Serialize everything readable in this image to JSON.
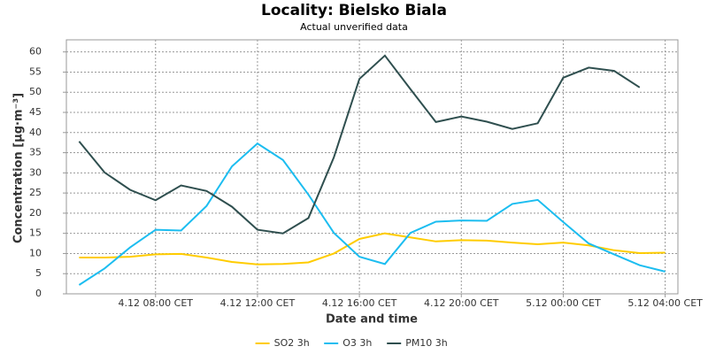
{
  "chart_data": {
    "type": "line",
    "title": "Locality: Bielsko Biala",
    "subtitle": "Actual unverified data",
    "x_label": "Date and time",
    "y_label": "Concentration [µg·m⁻³]",
    "categories": [
      null,
      null,
      null,
      "4.12 08:00 CET",
      null,
      null,
      null,
      "4.12 12:00 CET",
      null,
      null,
      null,
      "4.12 16:00 CET",
      null,
      null,
      null,
      "4.12 20:00 CET",
      null,
      null,
      null,
      "5.12 00:00 CET",
      null,
      null,
      null,
      "5.12 04:00 CET"
    ],
    "series": [
      {
        "name": "SO2 3h",
        "color": "#ffcc00",
        "values": [
          9,
          9,
          9.2,
          9.8,
          9.9,
          9,
          7.9,
          7.3,
          7.4,
          7.8,
          10,
          13.6,
          15,
          14,
          13,
          13.3,
          13.2,
          12.7,
          12.3,
          12.7,
          12,
          10.8,
          10.1,
          10.2
        ]
      },
      {
        "name": "O3 3h",
        "color": "#1cbdf0",
        "values": [
          2.2,
          6.3,
          11.5,
          15.9,
          15.7,
          21.8,
          31.6,
          37.3,
          33.2,
          24.6,
          15.1,
          9.2,
          7.4,
          15.1,
          17.9,
          18.2,
          18.1,
          22.3,
          23.3,
          17.8,
          12.5,
          9.8,
          7.1,
          5.5
        ]
      },
      {
        "name": "PM10 3h",
        "color": "#2f4f4f",
        "values": [
          37.8,
          30.1,
          25.8,
          23.2,
          26.9,
          25.5,
          21.6,
          15.9,
          15,
          18.8,
          33.9,
          53.3,
          59.1,
          50.8,
          42.6,
          44,
          42.7,
          40.9,
          42.3,
          53.6,
          56.1,
          55.3,
          51.2,
          null
        ]
      }
    ],
    "ylim": [
      0,
      63
    ],
    "yticks": [
      0,
      5,
      10,
      15,
      20,
      25,
      30,
      35,
      40,
      45,
      50,
      55,
      60
    ],
    "grid": true,
    "legend": "bottom"
  }
}
